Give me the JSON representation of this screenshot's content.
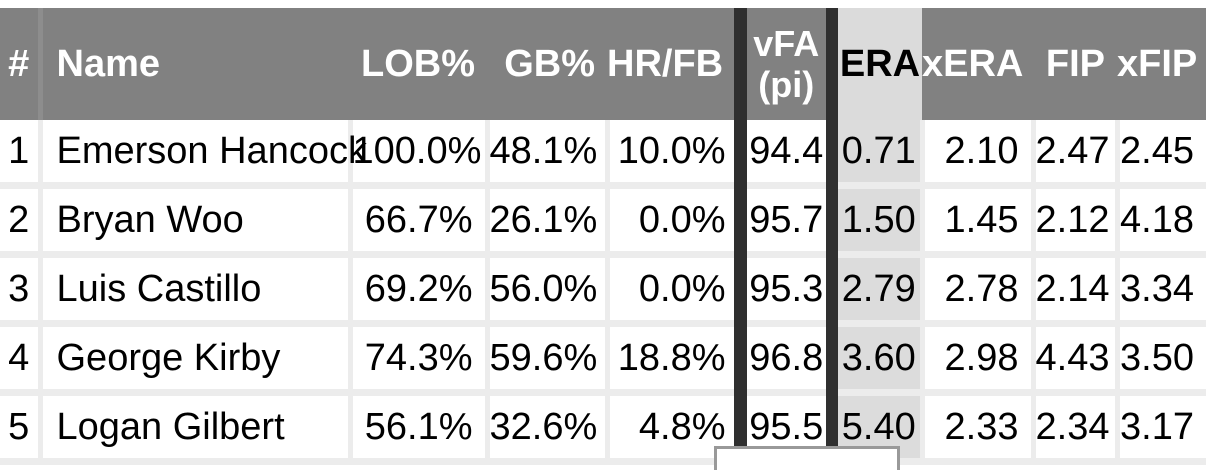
{
  "table": {
    "columns": [
      {
        "label": "#"
      },
      {
        "label": "Name"
      },
      {
        "label": "LOB%"
      },
      {
        "label": "GB%"
      },
      {
        "label": "HR/FB"
      },
      {
        "label": "vFA (pi)",
        "line1": "vFA",
        "line2": "(pi)"
      },
      {
        "label": "ERA"
      },
      {
        "label": "xERA"
      },
      {
        "label": "FIP"
      },
      {
        "label": "xFIP"
      }
    ],
    "sorted_column_label": "ERA",
    "rows": [
      {
        "rank": "1",
        "name": "Emerson Hancock",
        "lob_pct": "100.0%",
        "gb_pct": "48.1%",
        "hr_fb": "10.0%",
        "vfa_pi": "94.4",
        "era": "0.71",
        "xera": "2.10",
        "fip": "2.47",
        "xfip": "2.45"
      },
      {
        "rank": "2",
        "name": "Bryan Woo",
        "lob_pct": "66.7%",
        "gb_pct": "26.1%",
        "hr_fb": "0.0%",
        "vfa_pi": "95.7",
        "era": "1.50",
        "xera": "1.45",
        "fip": "2.12",
        "xfip": "4.18"
      },
      {
        "rank": "3",
        "name": "Luis Castillo",
        "lob_pct": "69.2%",
        "gb_pct": "56.0%",
        "hr_fb": "0.0%",
        "vfa_pi": "95.3",
        "era": "2.79",
        "xera": "2.78",
        "fip": "2.14",
        "xfip": "3.34"
      },
      {
        "rank": "4",
        "name": "George Kirby",
        "lob_pct": "74.3%",
        "gb_pct": "59.6%",
        "hr_fb": "18.8%",
        "vfa_pi": "96.8",
        "era": "3.60",
        "xera": "2.98",
        "fip": "4.43",
        "xfip": "3.50"
      },
      {
        "rank": "5",
        "name": "Logan Gilbert",
        "lob_pct": "56.1%",
        "gb_pct": "32.6%",
        "hr_fb": "4.8%",
        "vfa_pi": "95.5",
        "era": "5.40",
        "xera": "2.33",
        "fip": "2.34",
        "xfip": "3.17"
      }
    ]
  },
  "tooltip": {
    "text": ""
  },
  "colors": {
    "header_bg": "#818181",
    "header_text": "#ffffff",
    "sorted_header_bg": "#dbdbdb",
    "sorted_cell_bg": "#dcdcdc",
    "column_divider_dark": "#2f2f2f",
    "cell_border": "#ececec",
    "tooltip_border": "#999999",
    "body_text": "#000000"
  }
}
